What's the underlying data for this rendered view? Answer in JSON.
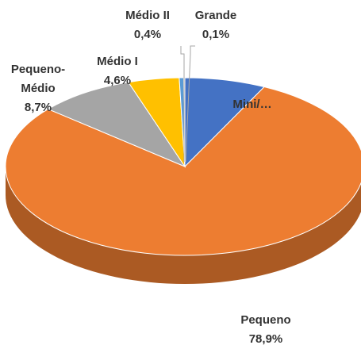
{
  "chart_data": {
    "type": "pie",
    "categories": [
      "Mini/…",
      "Pequeno",
      "Pequeno-Médio",
      "Médio I",
      "Médio II",
      "Grande"
    ],
    "values": [
      7.3,
      78.9,
      8.7,
      4.6,
      0.4,
      0.1
    ],
    "value_labels": [
      null,
      "78,9%",
      "8,7%",
      "4,6%",
      "0,4%",
      "0,1%"
    ],
    "colors": [
      "#4472c4",
      "#ed7d31",
      "#a5a5a5",
      "#ffc000",
      "#5b9bd5",
      "#70ad47"
    ]
  }
}
